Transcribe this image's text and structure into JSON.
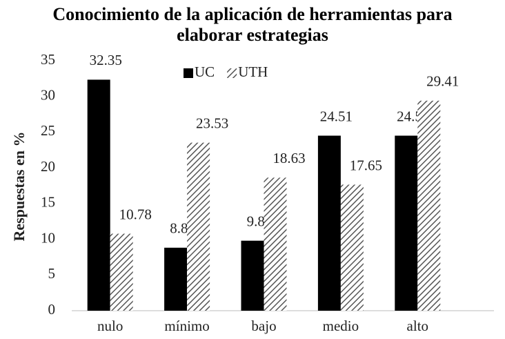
{
  "chart_data": {
    "type": "bar",
    "title": "Conocimiento de la aplicación de herramientas para elaborar estrategias",
    "y_label": "Respuestas en %",
    "categories": [
      "nulo",
      "mínimo",
      "bajo",
      "medio",
      "alto"
    ],
    "series": [
      {
        "name": "UC",
        "color": "#000000",
        "values": [
          32.35,
          8.82,
          9.8,
          24.51,
          24.51
        ],
        "value_labels": [
          "32.35",
          "8.82",
          "9.80",
          "24.51",
          "24.51"
        ]
      },
      {
        "name": "UTH",
        "color": "#555555",
        "pattern": "hatch",
        "values": [
          10.78,
          23.53,
          18.63,
          17.65,
          29.41
        ],
        "value_labels": [
          "10.78",
          "23.53",
          "18.63",
          "17.65",
          "29.41"
        ]
      }
    ],
    "ylim": [
      0,
      35
    ],
    "yticks": [
      0,
      5,
      10,
      15,
      20,
      25,
      30,
      35
    ],
    "grid": false,
    "legend": "top"
  }
}
